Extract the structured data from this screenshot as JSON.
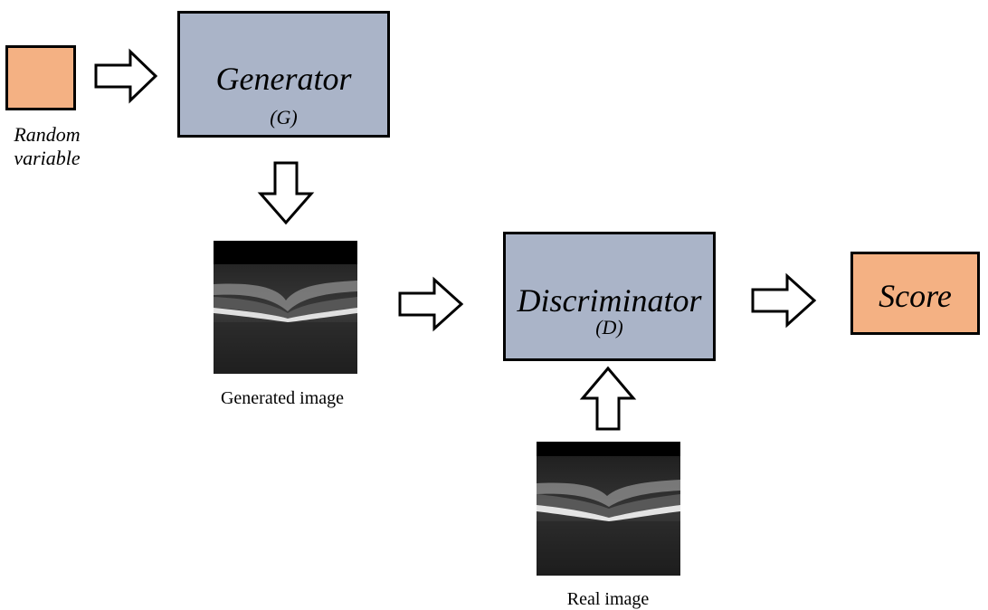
{
  "nodes": {
    "random": {
      "label_line1": "Random",
      "label_line2": "variable",
      "color": "#f4b183"
    },
    "generator": {
      "title": "Generator",
      "subtitle": "(G)",
      "color": "#aab4c8"
    },
    "discriminator": {
      "title": "Discriminator",
      "subtitle": "(D)",
      "color": "#aab4c8"
    },
    "score": {
      "title": "Score",
      "color": "#f4b183"
    }
  },
  "images": {
    "generated": {
      "caption": "Generated image"
    },
    "real": {
      "caption": "Real image"
    }
  }
}
